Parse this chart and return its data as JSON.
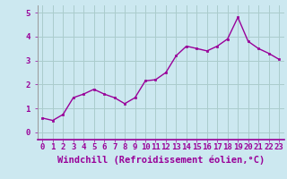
{
  "x": [
    0,
    1,
    2,
    3,
    4,
    5,
    6,
    7,
    8,
    9,
    10,
    11,
    12,
    13,
    14,
    15,
    16,
    17,
    18,
    19,
    20,
    21,
    22,
    23
  ],
  "y": [
    0.6,
    0.5,
    0.75,
    1.45,
    1.6,
    1.8,
    1.6,
    1.45,
    1.2,
    1.45,
    2.15,
    2.2,
    2.5,
    3.2,
    3.6,
    3.5,
    3.4,
    3.6,
    3.9,
    4.8,
    3.8,
    3.5,
    3.3,
    3.05
  ],
  "line_color": "#990099",
  "marker_color": "#990099",
  "bg_color": "#cce8f0",
  "grid_color": "#aacccc",
  "xlabel": "Windchill (Refroidissement éolien,°C)",
  "xlim": [
    -0.5,
    23.5
  ],
  "ylim": [
    -0.3,
    5.3
  ],
  "yticks": [
    0,
    1,
    2,
    3,
    4,
    5
  ],
  "xtick_labels": [
    "0",
    "1",
    "2",
    "3",
    "4",
    "5",
    "6",
    "7",
    "8",
    "9",
    "10",
    "11",
    "12",
    "13",
    "14",
    "15",
    "16",
    "17",
    "18",
    "19",
    "20",
    "21",
    "22",
    "23"
  ],
  "tick_color": "#990099",
  "tick_fontsize": 6.5,
  "xlabel_fontsize": 7.5,
  "xlabel_color": "#990099",
  "separator_color": "#990099",
  "spine_color": "#999999"
}
